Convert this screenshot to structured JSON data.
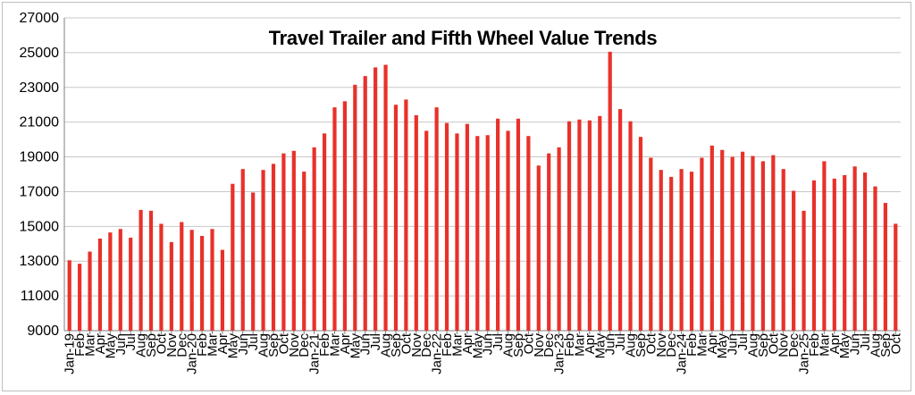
{
  "chart_data": {
    "type": "bar",
    "title": "Travel Trailer and Fifth Wheel Value Trends",
    "xlabel": "",
    "ylabel": "",
    "ylim": [
      9000,
      27000
    ],
    "yticks": [
      9000,
      11000,
      13000,
      15000,
      17000,
      19000,
      21000,
      23000,
      25000,
      27000
    ],
    "grid": true,
    "bar_color": "#e8312a",
    "categories": [
      "Jan-19",
      "Feb",
      "Mar",
      "Apr",
      "May",
      "Jun",
      "Jul",
      "Aug",
      "Sep",
      "Oct",
      "Nov",
      "Dec",
      "Jan-20",
      "Feb",
      "Mar",
      "Apr",
      "May",
      "Jun",
      "Jul",
      "Aug",
      "Sep",
      "Oct",
      "Nov",
      "Dec",
      "Jan-21",
      "Feb",
      "Mar",
      "Apr",
      "May",
      "Jun",
      "Jul",
      "Aug",
      "Sep",
      "Oct",
      "Nov",
      "Dec",
      "Jan-22",
      "Feb",
      "Mar",
      "Apr",
      "May",
      "Jun",
      "Jul",
      "Aug",
      "Sep",
      "Oct",
      "Nov",
      "Dec",
      "Jan-23",
      "Feb",
      "Mar",
      "Apr",
      "May",
      "Jun",
      "Jul",
      "Aug",
      "Sep",
      "Oct",
      "Nov",
      "Dec",
      "Jan-24",
      "Feb",
      "Mar",
      "Apr",
      "May",
      "Jun",
      "Jul",
      "Aug",
      "Sep",
      "Oct",
      "Nov",
      "Dec",
      "Jan-25",
      "Feb",
      "Mar",
      "Apr",
      "May",
      "Jun",
      "Jul",
      "Aug",
      "Sep",
      "Oct"
    ],
    "values": [
      13050,
      12850,
      13550,
      14300,
      14650,
      14850,
      14350,
      15950,
      15900,
      15150,
      14100,
      15250,
      14800,
      14450,
      14850,
      13650,
      17450,
      18300,
      16950,
      18250,
      18600,
      19200,
      19350,
      18150,
      19550,
      20350,
      21850,
      22200,
      23150,
      23650,
      24150,
      24300,
      22000,
      22300,
      21400,
      20500,
      21850,
      20950,
      20350,
      20900,
      20200,
      20250,
      21200,
      20500,
      21200,
      20200,
      18500,
      19200,
      19550,
      21050,
      21150,
      21100,
      21350,
      25050,
      21750,
      21050,
      20150,
      18950,
      18250,
      17850,
      18300,
      18150,
      18950,
      19650,
      19400,
      19000,
      19300,
      19050,
      18750,
      19100,
      18300,
      17050,
      15900,
      17650,
      18750,
      17750,
      17950,
      18450,
      18100,
      17300,
      16350,
      15150
    ]
  }
}
